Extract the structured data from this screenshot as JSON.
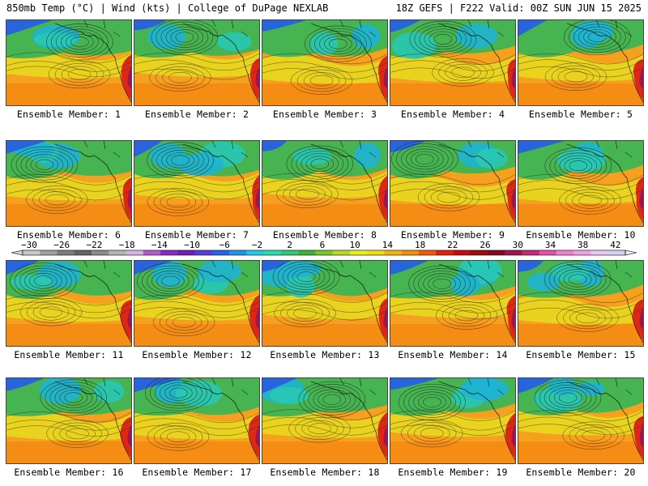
{
  "header": {
    "title_left": "850mb Temp (°C) | Wind (kts) | College of DuPage NEXLAB",
    "title_right": "18Z GEFS | F222 Valid: 00Z SUN JUN 15 2025"
  },
  "panels": [
    {
      "label": "Ensemble Member: 1"
    },
    {
      "label": "Ensemble Member: 2"
    },
    {
      "label": "Ensemble Member: 3"
    },
    {
      "label": "Ensemble Member: 4"
    },
    {
      "label": "Ensemble Member: 5"
    },
    {
      "label": "Ensemble Member: 6"
    },
    {
      "label": "Ensemble Member: 7"
    },
    {
      "label": "Ensemble Member: 8"
    },
    {
      "label": "Ensemble Member: 9"
    },
    {
      "label": "Ensemble Member: 10"
    },
    {
      "label": "Ensemble Member: 11"
    },
    {
      "label": "Ensemble Member: 12"
    },
    {
      "label": "Ensemble Member: 13"
    },
    {
      "label": "Ensemble Member: 14"
    },
    {
      "label": "Ensemble Member: 15"
    },
    {
      "label": "Ensemble Member: 16"
    },
    {
      "label": "Ensemble Member: 17"
    },
    {
      "label": "Ensemble Member: 18"
    },
    {
      "label": "Ensemble Member: 19"
    },
    {
      "label": "Ensemble Member: 20"
    }
  ],
  "colorbar": {
    "ticks": [
      "−30",
      "−26",
      "−22",
      "−18",
      "−14",
      "−10",
      "−6",
      "−2",
      "2",
      "6",
      "10",
      "14",
      "18",
      "22",
      "26",
      "30",
      "34",
      "38",
      "42"
    ],
    "colors": [
      "#c8c8c8",
      "#a0a0a0",
      "#7d7d7d",
      "#646464",
      "#8c8c8c",
      "#b4b4b4",
      "#d2b4e6",
      "#b45ad2",
      "#8c28c8",
      "#6e1eb4",
      "#5a3cdc",
      "#2864f0",
      "#1e96f0",
      "#1ec8e6",
      "#28dcb4",
      "#32c878",
      "#3cb43c",
      "#78c828",
      "#b4dc1e",
      "#e6f014",
      "#f0dc0a",
      "#f5b40a",
      "#f58c0a",
      "#f05a0a",
      "#e61e0a",
      "#c80a0a",
      "#a00a0a",
      "#820a1e",
      "#a01450",
      "#c8287a",
      "#e650aa",
      "#f082d2",
      "#f0a0e6",
      "#e6c8f0",
      "#d2d2f5"
    ]
  }
}
